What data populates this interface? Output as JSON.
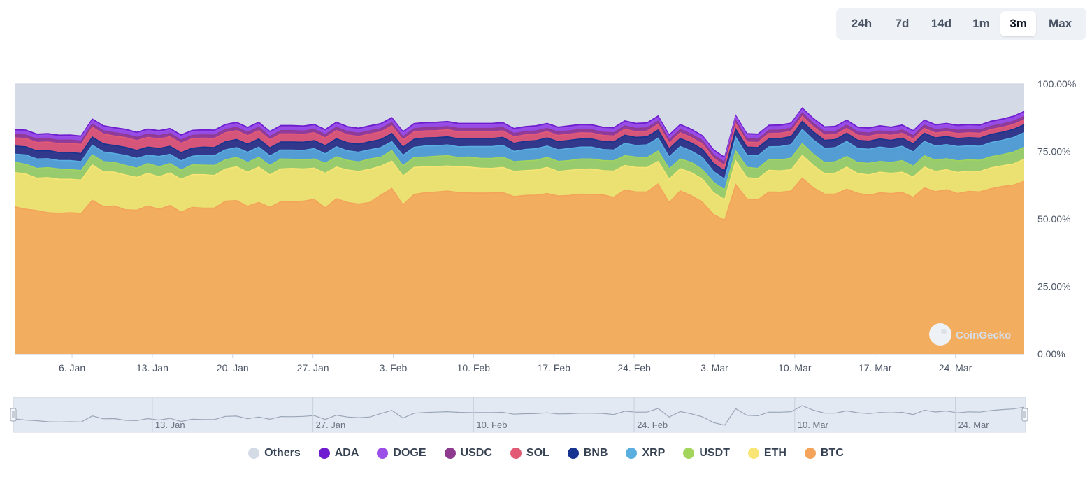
{
  "range_selector": {
    "options": [
      "24h",
      "7d",
      "14d",
      "1m",
      "3m",
      "Max"
    ],
    "selected": "3m"
  },
  "watermark": "CoinGecko",
  "chart_data": {
    "type": "area",
    "stacked": true,
    "title": "",
    "xlabel": "",
    "ylabel": "",
    "x_start": "2025-01-01",
    "x_end": "2025-03-30",
    "x_ticks": [
      "6. Jan",
      "13. Jan",
      "20. Jan",
      "27. Jan",
      "3. Feb",
      "10. Feb",
      "17. Feb",
      "24. Feb",
      "3. Mar",
      "10. Mar",
      "17. Mar",
      "24. Mar"
    ],
    "y_ticks": [
      "100.00%",
      "75.00%",
      "50.00%",
      "25.00%",
      "0.00%"
    ],
    "ylim": [
      0,
      100
    ],
    "grid": false,
    "legend_position": "bottom",
    "navigator_ticks": [
      "13. Jan",
      "27. Jan",
      "10. Feb",
      "24. Feb",
      "10. Mar",
      "24. Mar"
    ],
    "series": [
      {
        "name": "BTC",
        "color": "#f3a35a",
        "values": [
          54.5,
          53.6,
          53.1,
          52.3,
          52.1,
          52.3,
          52.1,
          56.9,
          54.6,
          54.8,
          53.4,
          53.2,
          54.8,
          53.6,
          55.0,
          52.5,
          54.3,
          54.0,
          54.0,
          56.6,
          56.8,
          54.7,
          56.1,
          54.3,
          56.4,
          56.3,
          56.6,
          57.2,
          54.1,
          57.5,
          56.1,
          55.5,
          56.1,
          58.8,
          61.3,
          55.2,
          59.1,
          59.7,
          60.0,
          60.3,
          59.8,
          59.6,
          59.6,
          59.6,
          59.8,
          58.3,
          58.7,
          58.8,
          59.4,
          58.5,
          58.7,
          59.2,
          59.1,
          58.9,
          58.0,
          60.7,
          60.0,
          60.0,
          62.9,
          56.0,
          60.4,
          58.6,
          56.2,
          51.6,
          49.5,
          62.7,
          57.4,
          57.1,
          60.0,
          59.9,
          60.3,
          65.1,
          61.5,
          59.2,
          59.2,
          61.0,
          59.5,
          58.8,
          59.7,
          59.4,
          59.8,
          58.0,
          61.5,
          60.1,
          60.8,
          59.4,
          60.2,
          60.0,
          61.2,
          62.0,
          62.5,
          63.9
        ]
      },
      {
        "name": "ETH",
        "color": "#f9e574",
        "values": [
          12.7,
          13.0,
          12.0,
          13.0,
          12.6,
          12.4,
          12.3,
          13.1,
          12.8,
          12.5,
          12.9,
          12.2,
          12.1,
          12.0,
          12.0,
          12.2,
          12.1,
          12.4,
          12.1,
          11.9,
          12.5,
          12.6,
          13.1,
          12.0,
          12.1,
          12.4,
          11.9,
          11.6,
          12.8,
          11.7,
          12.0,
          12.1,
          12.3,
          10.7,
          10.1,
          10.6,
          10.0,
          9.6,
          9.4,
          9.3,
          9.5,
          9.6,
          9.2,
          9.1,
          9.3,
          9.3,
          9.2,
          9.3,
          9.7,
          9.1,
          9.3,
          9.2,
          9.4,
          9.0,
          9.7,
          9.1,
          9.1,
          9.0,
          8.4,
          8.7,
          8.2,
          8.5,
          8.5,
          8.1,
          7.6,
          8.8,
          7.9,
          7.8,
          8.0,
          7.9,
          7.9,
          8.4,
          8.3,
          7.5,
          7.8,
          8.2,
          7.3,
          7.5,
          7.6,
          7.5,
          7.5,
          7.5,
          7.7,
          7.5,
          7.4,
          7.8,
          7.5,
          7.6,
          7.7,
          7.7,
          7.8,
          8.2
        ]
      },
      {
        "name": "USDT",
        "color": "#a3d45b",
        "values": [
          3.8,
          3.6,
          3.6,
          3.7,
          3.8,
          3.6,
          3.5,
          3.7,
          3.8,
          3.6,
          3.5,
          3.4,
          3.6,
          3.7,
          3.5,
          3.4,
          3.6,
          3.5,
          3.7,
          3.4,
          3.5,
          3.6,
          3.6,
          3.5,
          3.7,
          3.4,
          3.4,
          3.4,
          3.7,
          3.8,
          3.6,
          3.5,
          3.8,
          3.3,
          3.9,
          3.8,
          3.7,
          3.6,
          3.8,
          3.8,
          3.5,
          3.7,
          3.6,
          3.7,
          3.8,
          3.6,
          3.6,
          3.6,
          3.7,
          3.7,
          3.6,
          3.8,
          3.7,
          3.7,
          3.8,
          3.6,
          3.8,
          3.7,
          3.8,
          3.8,
          3.6,
          3.8,
          3.5,
          3.8,
          3.6,
          3.7,
          3.8,
          3.8,
          4.0,
          4.1,
          4.3,
          4.4,
          4.1,
          4.1,
          4.2,
          3.9,
          4.0,
          4.3,
          4.0,
          4.0,
          4.3,
          4.0,
          4.2,
          4.1,
          4.1,
          4.3,
          4.2,
          4.1,
          4.1,
          4.1,
          4.4,
          4.4
        ]
      },
      {
        "name": "XRP",
        "color": "#5aafe0",
        "values": [
          3.0,
          3.5,
          3.5,
          3.3,
          3.1,
          3.3,
          3.3,
          3.6,
          3.6,
          3.3,
          3.7,
          3.6,
          3.1,
          3.8,
          3.4,
          3.4,
          3.2,
          3.7,
          3.6,
          3.7,
          3.6,
          3.8,
          3.8,
          3.5,
          3.3,
          3.4,
          3.5,
          3.8,
          3.5,
          3.7,
          3.5,
          3.6,
          3.4,
          3.6,
          3.3,
          3.9,
          3.7,
          4.1,
          3.9,
          4.0,
          3.9,
          3.9,
          4.4,
          4.4,
          4.3,
          3.8,
          4.2,
          4.3,
          4.2,
          4.3,
          4.5,
          4.4,
          4.4,
          4.1,
          4.0,
          4.6,
          4.3,
          4.7,
          4.8,
          4.4,
          4.6,
          4.2,
          4.5,
          4.0,
          4.0,
          5.0,
          4.5,
          4.7,
          4.7,
          4.9,
          5.0,
          5.2,
          5.3,
          5.3,
          5.2,
          5.6,
          5.3,
          5.2,
          5.3,
          5.2,
          5.3,
          5.3,
          5.3,
          5.3,
          5.2,
          5.3,
          5.2,
          5.2,
          5.3,
          5.3,
          5.4,
          5.4
        ]
      },
      {
        "name": "BNB",
        "color": "#15338f",
        "values": [
          3.0,
          3.0,
          3.0,
          3.0,
          3.0,
          3.0,
          3.0,
          3.0,
          3.0,
          3.0,
          3.0,
          3.0,
          3.0,
          3.0,
          3.0,
          3.0,
          3.0,
          3.0,
          3.0,
          3.0,
          3.0,
          3.0,
          3.0,
          3.0,
          3.0,
          3.0,
          3.0,
          3.0,
          3.0,
          3.0,
          3.0,
          3.0,
          3.0,
          3.0,
          3.0,
          3.0,
          3.0,
          3.0,
          3.0,
          3.0,
          3.0,
          3.0,
          3.0,
          3.0,
          3.0,
          3.0,
          3.0,
          3.0,
          3.0,
          3.0,
          3.0,
          3.0,
          3.0,
          3.0,
          3.0,
          3.0,
          3.0,
          3.0,
          3.0,
          3.0,
          3.0,
          3.0,
          3.0,
          3.0,
          3.0,
          3.0,
          3.0,
          3.0,
          3.0,
          3.0,
          3.0,
          3.0,
          3.0,
          3.0,
          3.0,
          3.0,
          3.0,
          3.0,
          3.0,
          3.0,
          3.0,
          3.0,
          3.0,
          3.0,
          3.0,
          3.0,
          3.0,
          3.0,
          3.0,
          3.0,
          3.0,
          3.0
        ]
      },
      {
        "name": "SOL",
        "color": "#e35a76",
        "values": [
          3.0,
          3.1,
          3.1,
          3.2,
          3.3,
          3.4,
          3.4,
          3.6,
          3.6,
          3.5,
          3.6,
          3.6,
          3.6,
          3.5,
          3.5,
          3.5,
          3.5,
          3.3,
          3.4,
          3.3,
          3.3,
          3.1,
          3.1,
          3.0,
          3.0,
          3.0,
          2.9,
          2.9,
          2.9,
          3.0,
          2.9,
          2.8,
          2.8,
          2.8,
          2.8,
          2.7,
          2.7,
          2.6,
          2.6,
          2.6,
          2.6,
          2.5,
          2.5,
          2.5,
          2.4,
          2.4,
          2.4,
          2.4,
          2.3,
          2.3,
          2.3,
          2.3,
          2.2,
          2.2,
          2.2,
          2.2,
          2.1,
          2.1,
          2.1,
          2.1,
          2.1,
          2.0,
          2.0,
          2.0,
          2.0,
          2.0,
          1.9,
          1.9,
          1.9,
          1.9,
          1.9,
          1.9,
          1.9,
          1.9,
          1.8,
          1.8,
          1.8,
          1.8,
          1.8,
          1.8,
          1.8,
          1.8,
          1.8,
          1.8,
          1.8,
          1.8,
          1.8,
          1.8,
          1.8,
          1.8,
          1.8,
          1.8
        ]
      },
      {
        "name": "USDC",
        "color": "#8e3a8f",
        "values": [
          1.2,
          1.2,
          1.2,
          1.2,
          1.2,
          1.2,
          1.2,
          1.2,
          1.2,
          1.2,
          1.2,
          1.2,
          1.2,
          1.2,
          1.2,
          1.2,
          1.2,
          1.2,
          1.2,
          1.2,
          1.2,
          1.2,
          1.2,
          1.2,
          1.2,
          1.2,
          1.2,
          1.2,
          1.2,
          1.2,
          1.2,
          1.2,
          1.2,
          1.2,
          1.2,
          1.2,
          1.2,
          1.2,
          1.2,
          1.2,
          1.2,
          1.2,
          1.2,
          1.2,
          1.2,
          1.2,
          1.2,
          1.2,
          1.2,
          1.2,
          1.2,
          1.2,
          1.2,
          1.2,
          1.2,
          1.2,
          1.2,
          1.2,
          1.2,
          1.2,
          1.2,
          1.2,
          1.2,
          1.2,
          1.2,
          1.2,
          1.2,
          1.2,
          1.2,
          1.2,
          1.2,
          1.2,
          1.2,
          1.2,
          1.2,
          1.2,
          1.2,
          1.2,
          1.2,
          1.2,
          1.2,
          1.2,
          1.2,
          1.2,
          1.2,
          1.2,
          1.2,
          1.2,
          1.2,
          1.2,
          1.2,
          1.2
        ]
      },
      {
        "name": "DOGE",
        "color": "#9b4fe8",
        "values": [
          1.3,
          1.3,
          1.3,
          1.3,
          1.3,
          1.3,
          1.3,
          1.3,
          1.3,
          1.3,
          1.3,
          1.3,
          1.3,
          1.3,
          1.3,
          1.3,
          1.3,
          1.3,
          1.3,
          1.3,
          1.3,
          1.3,
          1.3,
          1.3,
          1.3,
          1.3,
          1.3,
          1.3,
          1.3,
          1.3,
          1.3,
          1.3,
          1.3,
          1.3,
          1.3,
          1.3,
          1.3,
          1.3,
          1.3,
          1.3,
          1.3,
          1.3,
          1.3,
          1.3,
          1.3,
          1.3,
          1.3,
          1.3,
          1.3,
          1.3,
          1.3,
          1.3,
          1.3,
          1.3,
          1.3,
          1.3,
          1.3,
          1.3,
          1.3,
          1.3,
          1.3,
          1.3,
          1.3,
          1.3,
          1.3,
          1.3,
          1.3,
          1.3,
          1.3,
          1.3,
          1.3,
          1.3,
          1.3,
          1.3,
          1.3,
          1.3,
          1.3,
          1.3,
          1.3,
          1.3,
          1.3,
          1.3,
          1.3,
          1.3,
          1.3,
          1.3,
          1.3,
          1.3,
          1.3,
          1.3,
          1.3,
          1.3
        ]
      },
      {
        "name": "ADA",
        "color": "#6f1cd1",
        "values": [
          0.6,
          0.6,
          0.6,
          0.6,
          0.6,
          0.6,
          0.6,
          0.6,
          0.6,
          0.6,
          0.6,
          0.6,
          0.6,
          0.6,
          0.6,
          0.6,
          0.6,
          0.6,
          0.6,
          0.6,
          0.6,
          0.6,
          0.6,
          0.6,
          0.6,
          0.6,
          0.6,
          0.6,
          0.6,
          0.6,
          0.6,
          0.6,
          0.6,
          0.6,
          0.6,
          0.6,
          0.6,
          0.6,
          0.6,
          0.6,
          0.6,
          0.6,
          0.6,
          0.6,
          0.6,
          0.6,
          0.6,
          0.6,
          0.6,
          0.6,
          0.6,
          0.6,
          0.6,
          0.6,
          0.6,
          0.6,
          0.6,
          0.6,
          0.6,
          0.6,
          0.6,
          0.6,
          0.6,
          0.6,
          0.6,
          0.6,
          0.6,
          0.6,
          0.6,
          0.6,
          0.6,
          0.6,
          0.6,
          0.6,
          0.6,
          0.6,
          0.6,
          0.6,
          0.6,
          0.6,
          0.6,
          0.6,
          0.6,
          0.6,
          0.6,
          0.6,
          0.6,
          0.6,
          0.6,
          0.6,
          0.6,
          0.6
        ]
      },
      {
        "name": "Others",
        "color": "#d4dbe6",
        "values": "remainder-to-100"
      }
    ]
  },
  "legend_order": [
    "Others",
    "ADA",
    "DOGE",
    "USDC",
    "SOL",
    "BNB",
    "XRP",
    "USDT",
    "ETH",
    "BTC"
  ]
}
